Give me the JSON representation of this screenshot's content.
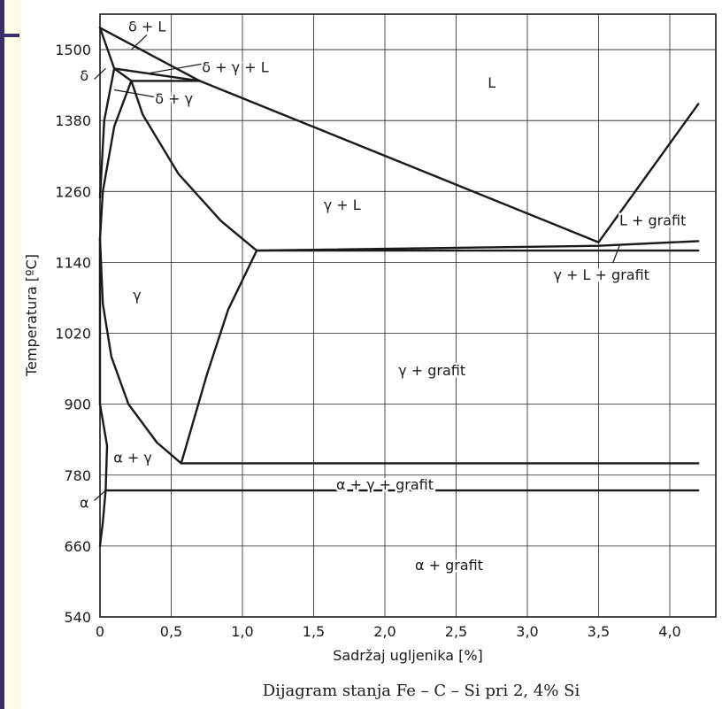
{
  "chart_data": {
    "type": "diagram",
    "title": "Dijagram stanja Fe – C – Si pri 2, 4% Si",
    "xlabel": "Sadržaj ugljenika [%]",
    "ylabel": "Temperatura [ºC]",
    "xlim": [
      0,
      4.2
    ],
    "ylim": [
      540,
      1560
    ],
    "x_ticks": [
      "0",
      "0,5",
      "1,0",
      "1,5",
      "2,0",
      "2,5",
      "3,0",
      "3,5",
      "4,0"
    ],
    "y_ticks": [
      "540",
      "660",
      "780",
      "900",
      "1020",
      "1140",
      "1260",
      "1380",
      "1500"
    ],
    "grid": true,
    "regions": [
      {
        "label": "δ + L",
        "x": 0.33,
        "y": 1540
      },
      {
        "label": "δ + γ + L",
        "x": 0.95,
        "y": 1471
      },
      {
        "label": "L",
        "x": 2.75,
        "y": 1445
      },
      {
        "label": "δ + γ",
        "x": 0.52,
        "y": 1418
      },
      {
        "label": "γ + L",
        "x": 1.7,
        "y": 1238
      },
      {
        "label": "L + grafit",
        "x": 3.88,
        "y": 1212
      },
      {
        "label": "γ + L + grafit",
        "x": 3.52,
        "y": 1120
      },
      {
        "label": "γ",
        "x": 0.26,
        "y": 1085
      },
      {
        "label": "γ + grafit",
        "x": 2.33,
        "y": 958
      },
      {
        "label": "α + γ",
        "x": 0.23,
        "y": 810
      },
      {
        "label": "α + γ + grafit",
        "x": 2.0,
        "y": 765
      },
      {
        "label": "α + grafit",
        "x": 2.45,
        "y": 628
      }
    ],
    "side_labels": [
      {
        "label": "δ",
        "x": -0.11,
        "y": 1457
      },
      {
        "label": "α",
        "x": -0.11,
        "y": 734
      }
    ]
  },
  "lines": [
    {
      "name": "line-liquidus-delta",
      "points": [
        [
          0,
          1537
        ],
        [
          0.7,
          1447
        ]
      ]
    },
    {
      "name": "line-delta-peritectic-upper",
      "points": [
        [
          0.1,
          1468
        ],
        [
          0.7,
          1447
        ]
      ]
    },
    {
      "name": "line-peritectic-horizontal",
      "points": [
        [
          0.22,
          1447
        ],
        [
          0.7,
          1447
        ]
      ]
    },
    {
      "name": "line-liquidus-gamma",
      "points": [
        [
          0.7,
          1447
        ],
        [
          3.5,
          1174
        ]
      ]
    },
    {
      "name": "line-liquidus-graphite",
      "points": [
        [
          3.5,
          1174
        ],
        [
          4.2,
          1408
        ]
      ]
    },
    {
      "name": "line-eutectic-upper",
      "points": [
        [
          1.1,
          1160
        ],
        [
          3.5,
          1168
        ],
        [
          4.2,
          1176
        ]
      ]
    },
    {
      "name": "line-eutectic-lower",
      "points": [
        [
          1.1,
          1160
        ],
        [
          4.2,
          1160
        ]
      ]
    },
    {
      "name": "line-eutectoid-upper",
      "points": [
        [
          0.57,
          800
        ],
        [
          4.2,
          800
        ]
      ]
    },
    {
      "name": "line-eutectoid-lower",
      "points": [
        [
          0.04,
          754
        ],
        [
          4.2,
          754
        ]
      ]
    },
    {
      "name": "line-delta-solvus-left",
      "points": [
        [
          0,
          1537
        ],
        [
          0.1,
          1468
        ]
      ]
    },
    {
      "name": "line-delta-gamma-left",
      "points": [
        [
          0.1,
          1468
        ],
        [
          0.03,
          1380
        ],
        [
          0,
          1250
        ]
      ]
    },
    {
      "name": "line-delta-solidus",
      "points": [
        [
          0.1,
          1468
        ],
        [
          0.22,
          1447
        ]
      ]
    },
    {
      "name": "line-gamma-solidus",
      "points": [
        [
          0.22,
          1447
        ],
        [
          0.3,
          1390
        ],
        [
          0.55,
          1290
        ],
        [
          0.85,
          1210
        ],
        [
          1.1,
          1160
        ]
      ]
    },
    {
      "name": "line-gamma-left-curve",
      "points": [
        [
          0.22,
          1447
        ],
        [
          0.1,
          1370
        ],
        [
          0.02,
          1260
        ],
        [
          0,
          1180
        ]
      ]
    },
    {
      "name": "line-acm-solvus",
      "points": [
        [
          1.1,
          1160
        ],
        [
          0.9,
          1060
        ],
        [
          0.75,
          950
        ],
        [
          0.57,
          800
        ]
      ]
    },
    {
      "name": "line-a3-curve",
      "points": [
        [
          0,
          1180
        ],
        [
          0.02,
          1070
        ],
        [
          0.08,
          980
        ],
        [
          0.2,
          900
        ],
        [
          0.4,
          835
        ],
        [
          0.57,
          800
        ]
      ]
    },
    {
      "name": "line-alpha-gamma-left",
      "points": [
        [
          0,
          900
        ],
        [
          0.05,
          830
        ],
        [
          0.04,
          754
        ]
      ]
    },
    {
      "name": "line-alpha-lower",
      "points": [
        [
          0.04,
          754
        ],
        [
          0.02,
          700
        ],
        [
          0,
          660
        ]
      ]
    },
    {
      "name": "line-gamma-alpha-left-curve",
      "points": [
        [
          0,
          1180
        ],
        [
          0,
          900
        ]
      ]
    }
  ],
  "leaders": [
    {
      "name": "leader-delta-L",
      "points": [
        [
          0.22,
          1500
        ],
        [
          0.33,
          1525
        ]
      ]
    },
    {
      "name": "leader-delta-gamma-L",
      "points": [
        [
          0.34,
          1460
        ],
        [
          0.72,
          1476
        ]
      ]
    },
    {
      "name": "leader-delta-gamma",
      "points": [
        [
          0.1,
          1432
        ],
        [
          0.38,
          1420
        ]
      ]
    },
    {
      "name": "leader-delta-side",
      "points": [
        [
          -0.04,
          1450
        ],
        [
          0.04,
          1468
        ]
      ]
    },
    {
      "name": "leader-alpha-side",
      "points": [
        [
          -0.04,
          737
        ],
        [
          0.04,
          754
        ]
      ]
    },
    {
      "name": "leader-gamma-L-grafit",
      "points": [
        [
          3.6,
          1139
        ],
        [
          3.65,
          1170
        ]
      ]
    }
  ]
}
